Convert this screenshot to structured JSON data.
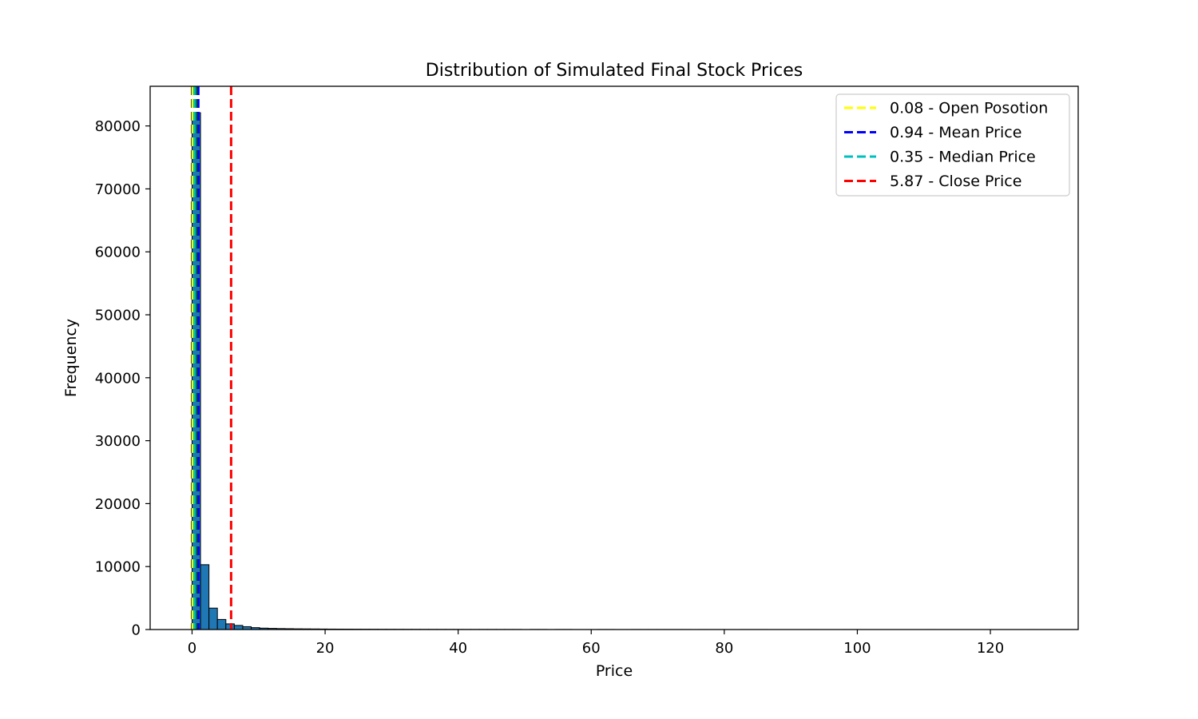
{
  "chart_data": {
    "type": "bar",
    "title": "Distribution of Simulated Final Stock Prices",
    "xlabel": "Price",
    "ylabel": "Frequency",
    "xlim": [
      -6.3,
      133.2
    ],
    "ylim": [
      0,
      86300
    ],
    "xticks": [
      0,
      20,
      40,
      60,
      80,
      100,
      120
    ],
    "yticks": [
      0,
      10000,
      20000,
      30000,
      40000,
      50000,
      60000,
      70000,
      80000
    ],
    "grid": false,
    "legend_position": "top-right",
    "bar_color": "#1f77b4",
    "bar_edge_color": "#000000",
    "bin_width": 1.27,
    "histogram": {
      "bin_starts": [
        0.0,
        1.27,
        2.54,
        3.81,
        5.08,
        6.35,
        7.62,
        8.89,
        10.16,
        11.43,
        12.7,
        13.97,
        15.24,
        16.51,
        17.78,
        19.05,
        20.32,
        21.59,
        22.86,
        24.13,
        25.4,
        26.67,
        27.94,
        29.21,
        30.48,
        31.75,
        33.02,
        34.29,
        35.56,
        36.83,
        38.1,
        39.37,
        40.64,
        41.91,
        43.18,
        44.45,
        45.72,
        46.99,
        48.26,
        50.8,
        52.07,
        54.61,
        55.88,
        60.96,
        62.23,
        66.04,
        67.31,
        68.58,
        69.85,
        71.12,
        72.39,
        73.66,
        76.2,
        77.47,
        78.74,
        82.55,
        83.82,
        85.09,
        92.71,
        97.79,
        99.06,
        100.33,
        110.49,
        125.73
      ],
      "counts": [
        82100,
        10300,
        3400,
        1600,
        900,
        650,
        450,
        300,
        220,
        180,
        150,
        130,
        110,
        100,
        90,
        80,
        70,
        65,
        60,
        55,
        50,
        45,
        40,
        38,
        35,
        32,
        30,
        28,
        26,
        24,
        22,
        20,
        18,
        17,
        16,
        15,
        14,
        13,
        12,
        10,
        9,
        8,
        7,
        6,
        5,
        5,
        4,
        4,
        4,
        3,
        3,
        3,
        3,
        2,
        2,
        2,
        2,
        2,
        1,
        1,
        1,
        1,
        1,
        1
      ]
    },
    "reference_lines": [
      {
        "x": 0.08,
        "color": "#ffff00",
        "label": "0.08 - Open Posotion"
      },
      {
        "x": 0.94,
        "color": "#0000ff",
        "label": "0.94 - Mean Price"
      },
      {
        "x": 0.35,
        "color": "#00bfbf",
        "label": "0.35 - Median Price"
      },
      {
        "x": 5.87,
        "color": "#ff0000",
        "label": "5.87 - Close Price"
      }
    ],
    "extra_lines": [
      {
        "x": 0.0,
        "color": "#000000"
      },
      {
        "x": 0.6,
        "color": "#008000"
      }
    ]
  }
}
